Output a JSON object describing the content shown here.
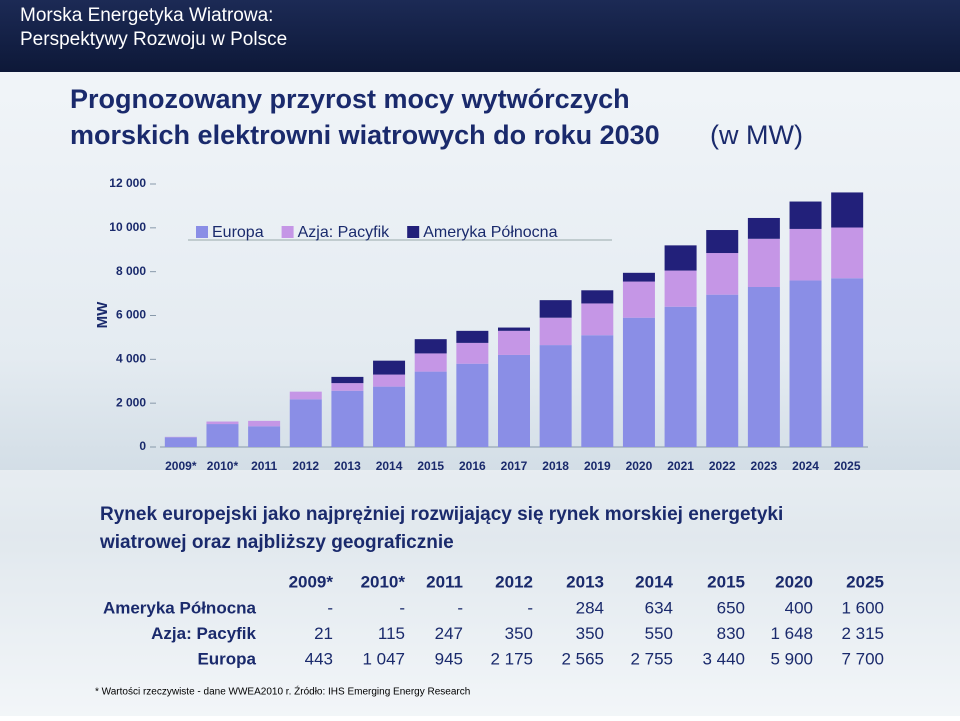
{
  "header": {
    "lines": [
      "Morska Energetyka Wiatrowa:",
      "Perspektywy Rozwoju w Polsce"
    ]
  },
  "title": {
    "lines": [
      "Prognozowany przyrost mocy wytwórczych",
      "morskich elektrowni wiatrowych do roku 2030"
    ],
    "unit": "(w MW)"
  },
  "chart_data": {
    "type": "stacked_bar",
    "y_label": "MW",
    "categories": [
      "2009*",
      "2010*",
      "2011",
      "2012",
      "2013",
      "2014",
      "2015",
      "2016",
      "2017",
      "2018",
      "2019",
      "2020",
      "2021",
      "2022",
      "2023",
      "2024",
      "2025"
    ],
    "series": [
      {
        "name": "Europa",
        "color": "#8a8ee6",
        "values": [
          443,
          1047,
          945,
          2175,
          2565,
          2755,
          3440,
          3800,
          4200,
          4650,
          5100,
          5900,
          6400,
          6950,
          7300,
          7600,
          7700
        ]
      },
      {
        "name": "Azja: Pacyfik",
        "color": "#c596e6",
        "values": [
          21,
          115,
          247,
          350,
          350,
          550,
          830,
          950,
          1100,
          1250,
          1450,
          1648,
          1650,
          1900,
          2200,
          2350,
          2315
        ]
      },
      {
        "name": "Ameryka Północna",
        "color": "#22207a",
        "values": [
          0,
          0,
          0,
          0,
          284,
          634,
          650,
          550,
          150,
          800,
          600,
          400,
          1150,
          1050,
          950,
          1250,
          1600
        ]
      }
    ],
    "ylim": [
      0,
      12000
    ],
    "yticks": [
      0,
      {
        "value": 2000,
        "label": "2 000"
      },
      {
        "value": 4000,
        "label": "4 000"
      },
      {
        "value": 6000,
        "label": "6 000"
      },
      {
        "value": 8000,
        "label": "8 000"
      },
      {
        "value": 10000,
        "label": "10 000"
      },
      {
        "value": 12000,
        "label": "12 000"
      }
    ]
  },
  "subtitle": {
    "lines": [
      "Rynek europejski jako najprężniej rozwijający się rynek morskiej energetyki",
      "wiatrowej oraz najbliższy geograficznie"
    ]
  },
  "table": {
    "columns": [
      "2009*",
      "2010*",
      "2011",
      "2012",
      "2013",
      "2014",
      "2015",
      "2020",
      "2025"
    ],
    "rows": [
      {
        "label": "Ameryka Północna",
        "cells": [
          "-",
          "-",
          "-",
          "-",
          "284",
          "634",
          "650",
          "400",
          "1 600"
        ]
      },
      {
        "label": "Azja: Pacyfik",
        "cells": [
          "21",
          "115",
          "247",
          "350",
          "350",
          "550",
          "830",
          "1 648",
          "2 315"
        ]
      },
      {
        "label": "Europa",
        "cells": [
          "443",
          "1 047",
          "945",
          "2 175",
          "2 565",
          "2 755",
          "3 440",
          "5 900",
          "7 700"
        ]
      }
    ]
  },
  "footnote": "* Wartości rzeczywiste - dane WWEA2010 r. Źródło: IHS Emerging Energy Research"
}
